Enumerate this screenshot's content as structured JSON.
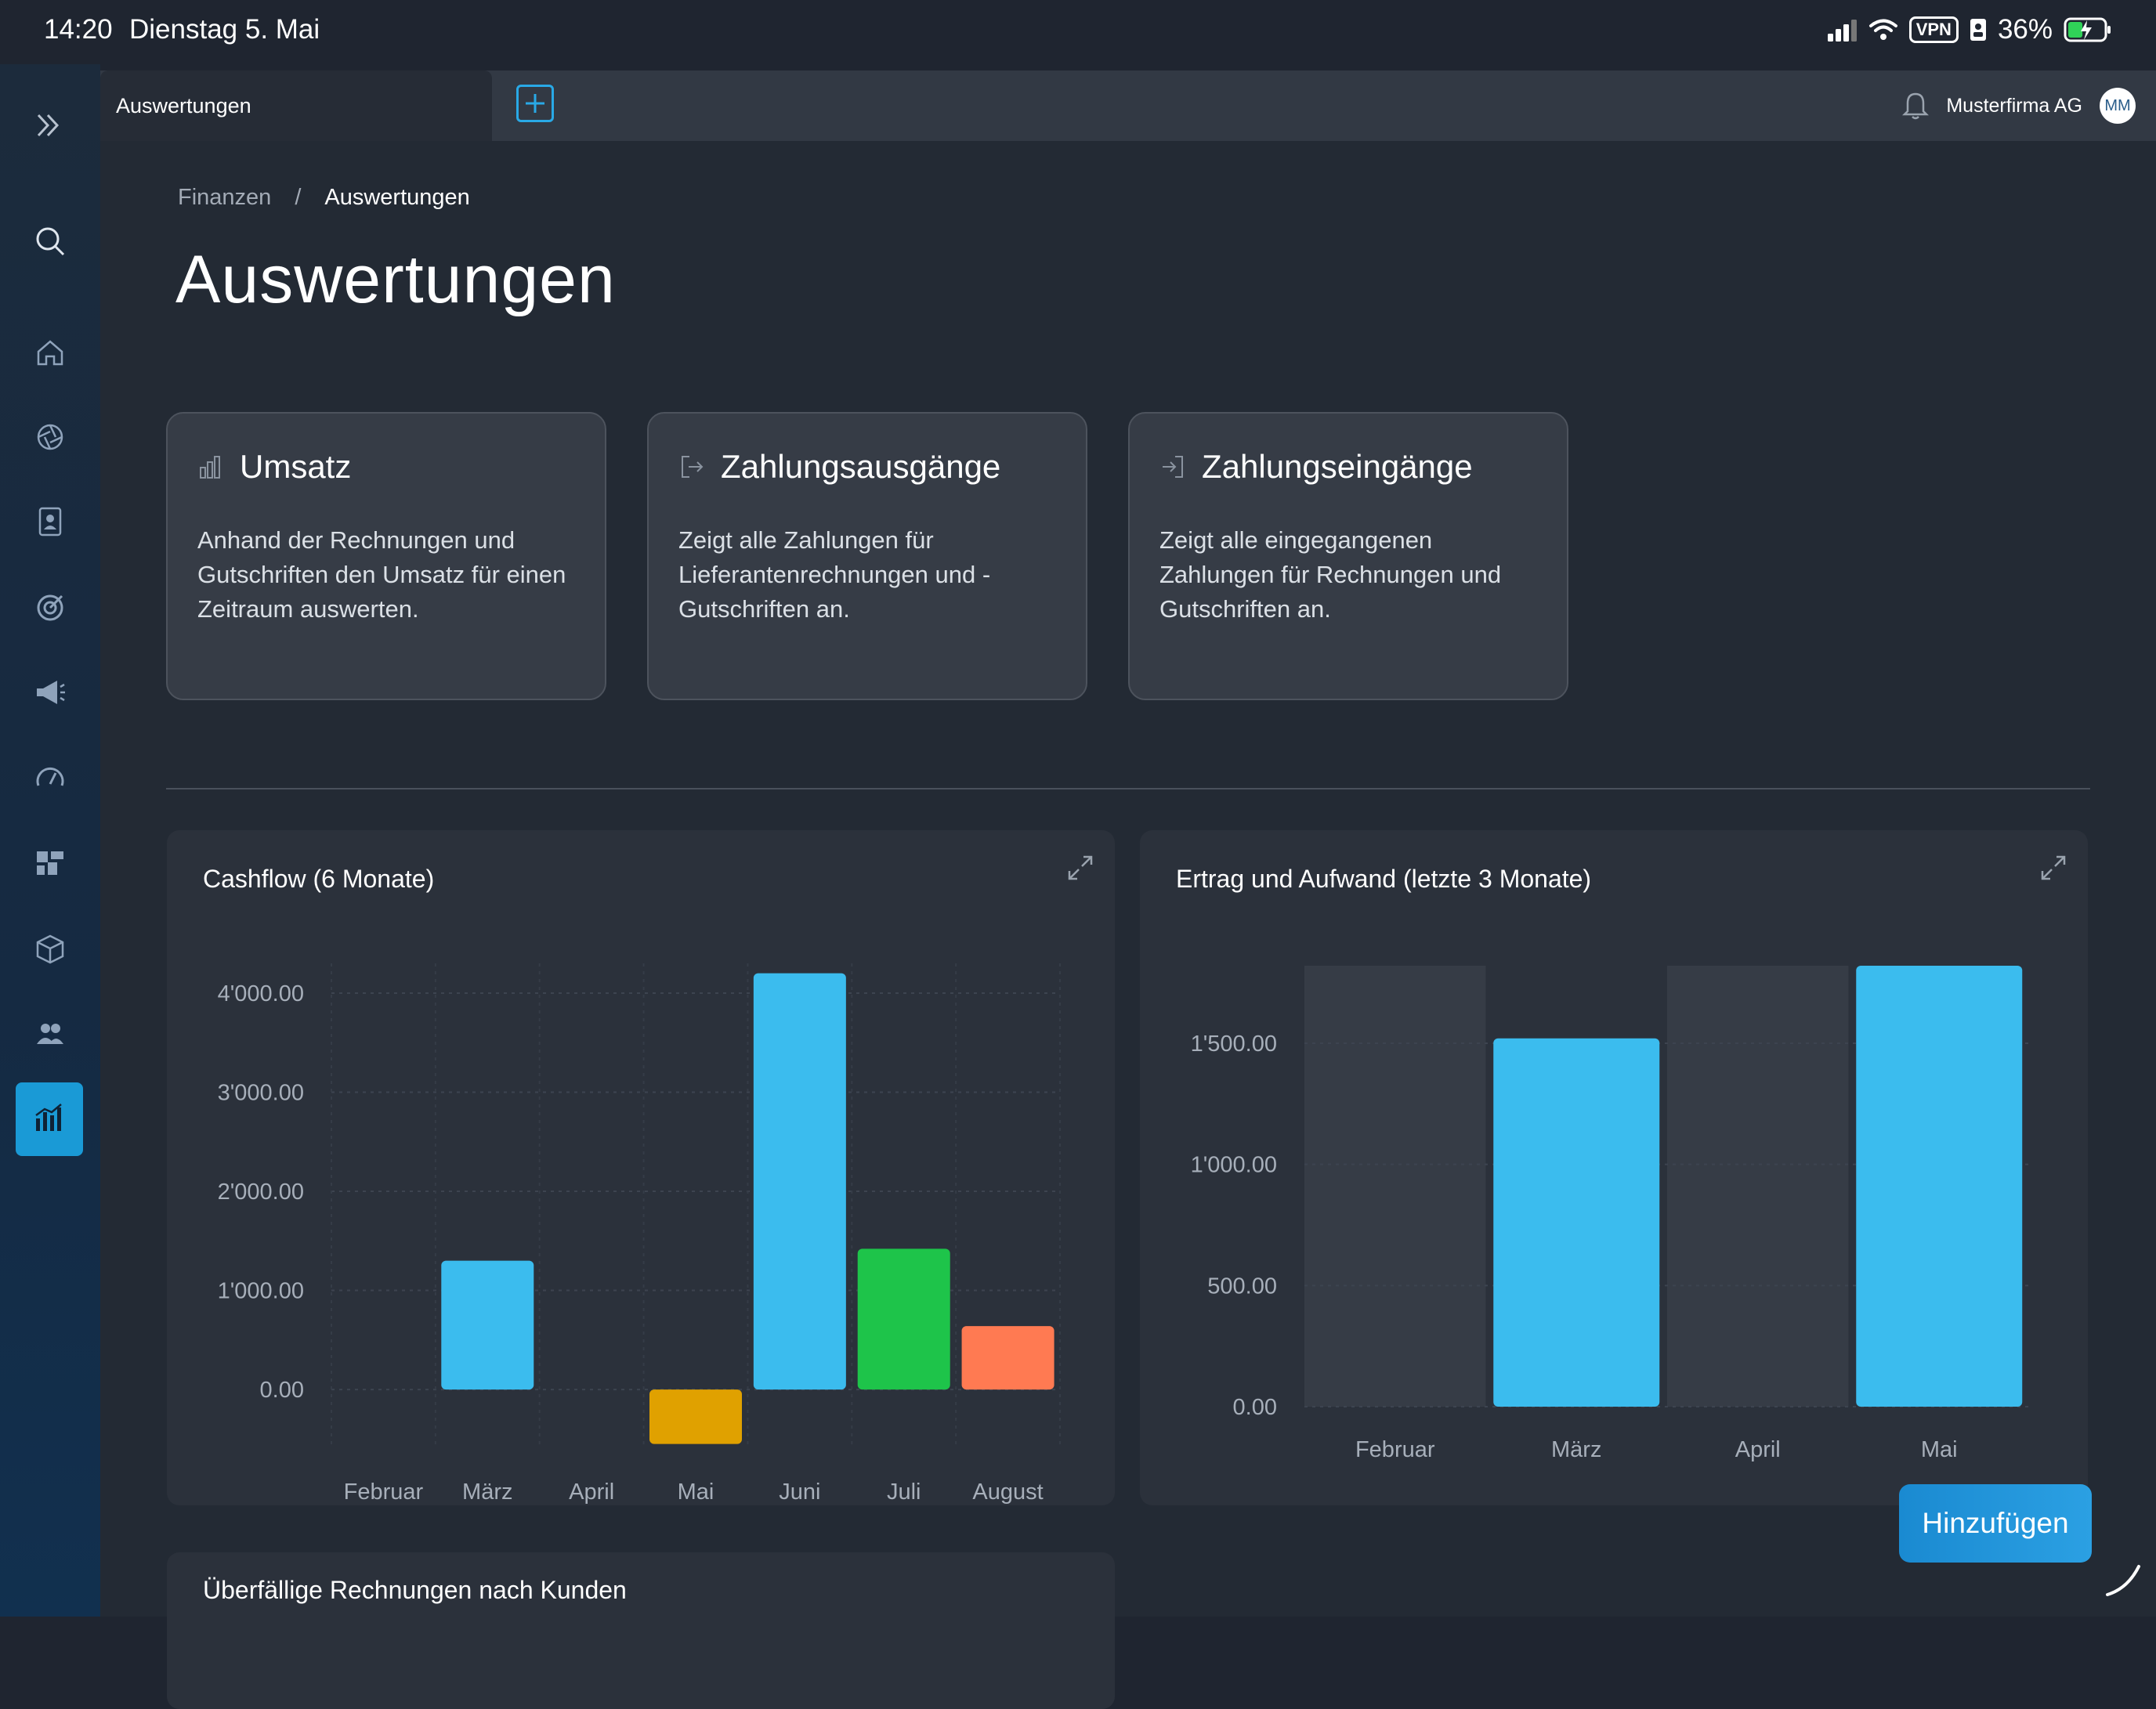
{
  "status_bar": {
    "time": "14:20",
    "date": "Dienstag 5. Mai",
    "vpn": "VPN",
    "battery": "36%"
  },
  "tab_bar": {
    "active_tab": "Auswertungen",
    "company": "Musterfirma AG",
    "avatar_initials": "MM"
  },
  "sidebar": {
    "items": [
      {
        "icon": "expand-chevrons-icon"
      },
      {
        "icon": "search-icon"
      },
      {
        "icon": "home-icon"
      },
      {
        "icon": "aperture-icon"
      },
      {
        "icon": "contacts-book-icon"
      },
      {
        "icon": "target-icon"
      },
      {
        "icon": "megaphone-icon"
      },
      {
        "icon": "speedometer-icon"
      },
      {
        "icon": "dashboard-blocks-icon"
      },
      {
        "icon": "package-icon"
      },
      {
        "icon": "users-icon"
      },
      {
        "icon": "analytics-chart-icon",
        "active": true
      }
    ]
  },
  "breadcrumb": {
    "parent": "Finanzen",
    "separator": "/",
    "current": "Auswertungen"
  },
  "page_title": "Auswertungen",
  "cards": [
    {
      "icon": "bar-chart-icon",
      "title": "Umsatz",
      "description": "Anhand der Rechnungen und Gutschriften den Umsatz für einen Zeitraum auswerten."
    },
    {
      "icon": "logout-arrow-icon",
      "title": "Zahlungsausgänge",
      "description": "Zeigt alle Zahlungen für Lieferantenrechnungen und -Gutschriften an."
    },
    {
      "icon": "login-arrow-icon",
      "title": "Zahlungseingänge",
      "description": "Zeigt alle eingegangenen Zahlungen für Rechnungen und Gutschriften an."
    }
  ],
  "panels": {
    "cashflow_title": "Cashflow (6 Monate)",
    "ertrag_title": "Ertrag und Aufwand (letzte 3 Monate)",
    "overdue_title": "Überfällige Rechnungen nach Kunden"
  },
  "add_button": "Hinzufügen",
  "colors": {
    "accent": "#3bbcee",
    "green": "#1ec44a",
    "orange": "#ff7a52",
    "yellow": "#e0a100",
    "bg": "#232a34"
  },
  "chart_data": [
    {
      "type": "bar",
      "title": "Cashflow (6 Monate)",
      "categories": [
        "Februar",
        "März",
        "April",
        "Mai",
        "Juni",
        "Juli",
        "August"
      ],
      "values": [
        0,
        1300,
        0,
        -550,
        4200,
        1420,
        640
      ],
      "bar_colors": [
        "#3bbcee",
        "#3bbcee",
        "#3bbcee",
        "#e0a100",
        "#3bbcee",
        "#1ec44a",
        "#ff7a52"
      ],
      "yticks": [
        "4'000.00",
        "3'000.00",
        "2'000.00",
        "1'000.00",
        "0.00"
      ],
      "ylim": [
        -600,
        4300
      ],
      "grid": true
    },
    {
      "type": "bar",
      "title": "Ertrag und Aufwand (letzte 3 Monate)",
      "categories": [
        "Februar",
        "März",
        "April",
        "Mai"
      ],
      "values": [
        0,
        1520,
        0,
        1820
      ],
      "bar_colors": [
        "#3bbcee",
        "#3bbcee",
        "#3bbcee",
        "#3bbcee"
      ],
      "yticks": [
        "1'500.00",
        "1'000.00",
        "500.00",
        "0.00"
      ],
      "ylim": [
        0,
        1820
      ],
      "grid": true
    }
  ]
}
